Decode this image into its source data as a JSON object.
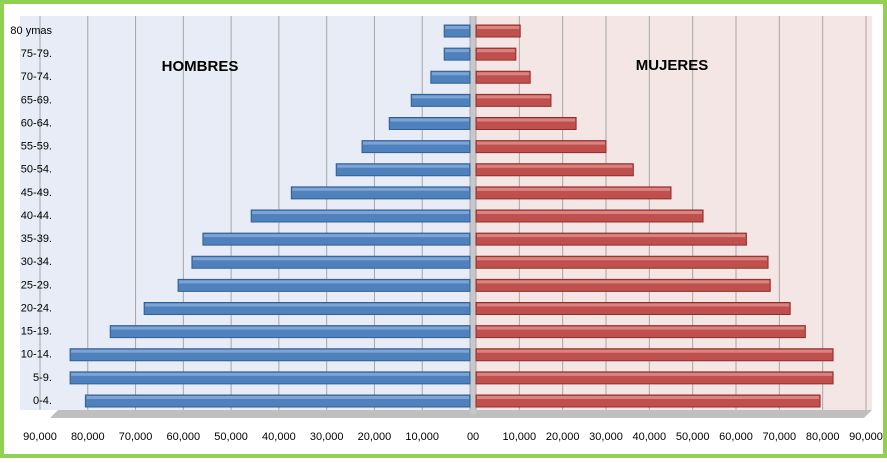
{
  "chart_data": [
    {
      "type": "hbar",
      "title": "HOMBRES",
      "direction": "left",
      "color": "#4f81bd",
      "categories": [
        "0-4.",
        "5-9.",
        "10-14.",
        "15-19.",
        "20-24.",
        "25-29.",
        "30-34.",
        "35-39.",
        "40-44.",
        "45-49.",
        "50-54.",
        "55-59.",
        "60-64.",
        "65-69.",
        "70-74.",
        "75-79.",
        "80 ymas"
      ],
      "values": [
        80500,
        83700,
        83700,
        75300,
        68200,
        61100,
        58200,
        55900,
        45800,
        37400,
        28000,
        22600,
        16900,
        12300,
        8200,
        5400,
        5400
      ],
      "xlim": [
        0,
        90000
      ],
      "xticks": [
        0,
        {
          "value": 10000,
          "label": "10,000"
        },
        {
          "value": 20000,
          "label": "20,000"
        },
        {
          "value": 30000,
          "label": "30,000"
        },
        {
          "value": 40000,
          "label": "40,000"
        },
        {
          "value": 50000,
          "label": "50,000"
        },
        {
          "value": 60000,
          "label": "60,000"
        },
        {
          "value": 70000,
          "label": "70,000"
        },
        {
          "value": 80000,
          "label": "80,000"
        },
        {
          "value": 90000,
          "label": "90,000"
        }
      ],
      "grid": true
    },
    {
      "type": "hbar",
      "title": "MUJERES",
      "direction": "right",
      "color": "#c0504d",
      "values": [
        79400,
        82400,
        82400,
        76000,
        72500,
        67900,
        67400,
        62400,
        52400,
        45000,
        36300,
        30000,
        23100,
        17300,
        12500,
        9200,
        10200
      ],
      "xlim": [
        0,
        90000
      ],
      "xticks": [
        0,
        {
          "value": 10000,
          "label": "10,000"
        },
        {
          "value": 20000,
          "label": "20,000"
        },
        {
          "value": 30000,
          "label": "30,000"
        },
        {
          "value": 40000,
          "label": "40,000"
        },
        {
          "value": 50000,
          "label": "50,000"
        },
        {
          "value": 60000,
          "label": "60,000"
        },
        {
          "value": 70000,
          "label": "70,000"
        },
        {
          "value": 80000,
          "label": "80,000"
        },
        {
          "value": 90000,
          "label": "90,000"
        }
      ],
      "grid": true
    }
  ]
}
